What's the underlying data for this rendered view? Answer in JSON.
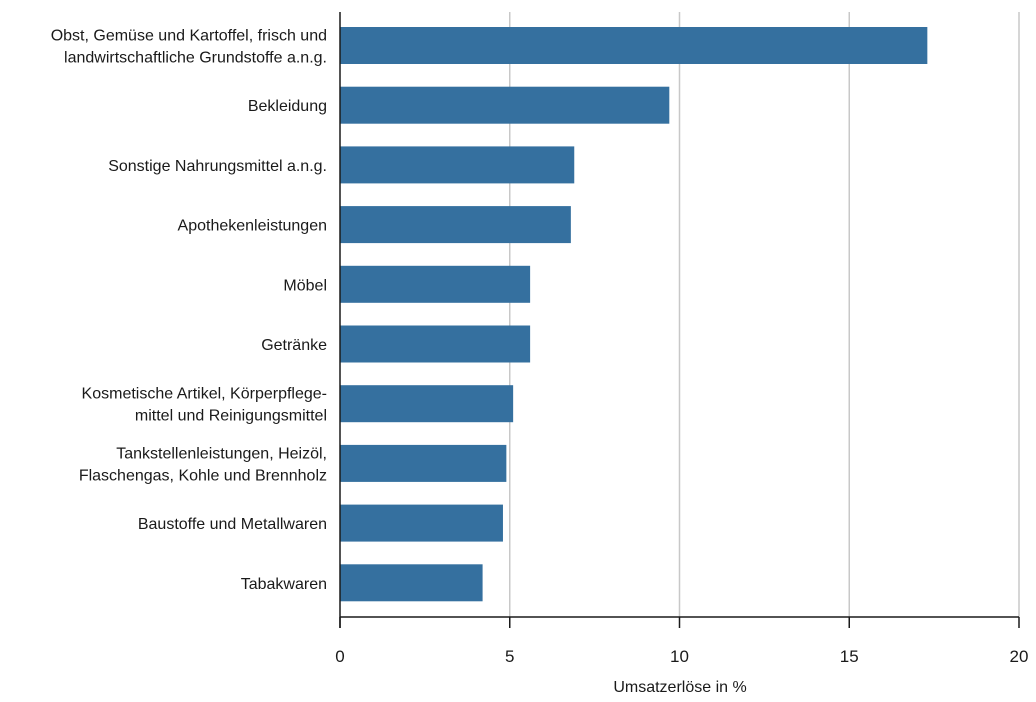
{
  "chart_data": {
    "type": "bar",
    "orientation": "horizontal",
    "categories": [
      [
        "Obst, Gemüse und Kartoffel, frisch und",
        "landwirtschaftliche Grundstoffe a.n.g."
      ],
      [
        "Bekleidung"
      ],
      [
        "Sonstige Nahrungsmittel a.n.g."
      ],
      [
        "Apothekenleistungen"
      ],
      [
        "Möbel"
      ],
      [
        "Getränke"
      ],
      [
        "Kosmetische Artikel, Körperpflege-",
        "mittel und Reinigungsmittel"
      ],
      [
        "Tankstellenleistungen, Heizöl,",
        "Flaschengas, Kohle und Brennholz"
      ],
      [
        "Baustoffe und Metallwaren"
      ],
      [
        "Tabakwaren"
      ]
    ],
    "values": [
      17.3,
      9.7,
      6.9,
      6.8,
      5.6,
      5.6,
      5.1,
      4.9,
      4.8,
      4.2
    ],
    "xlabel": "Umsatzerlöse in %",
    "xlim": [
      0,
      20
    ],
    "xticks": [
      0,
      5,
      10,
      15,
      20
    ],
    "xtick_labels": [
      "0",
      "5",
      "10",
      "15",
      "20"
    ],
    "grid": "vertical",
    "legend": "none",
    "colors": {
      "bar": "#35709f",
      "grid": "#c8c8c8",
      "axis": "#1a1a1a",
      "text": "#1a1a1a"
    }
  }
}
